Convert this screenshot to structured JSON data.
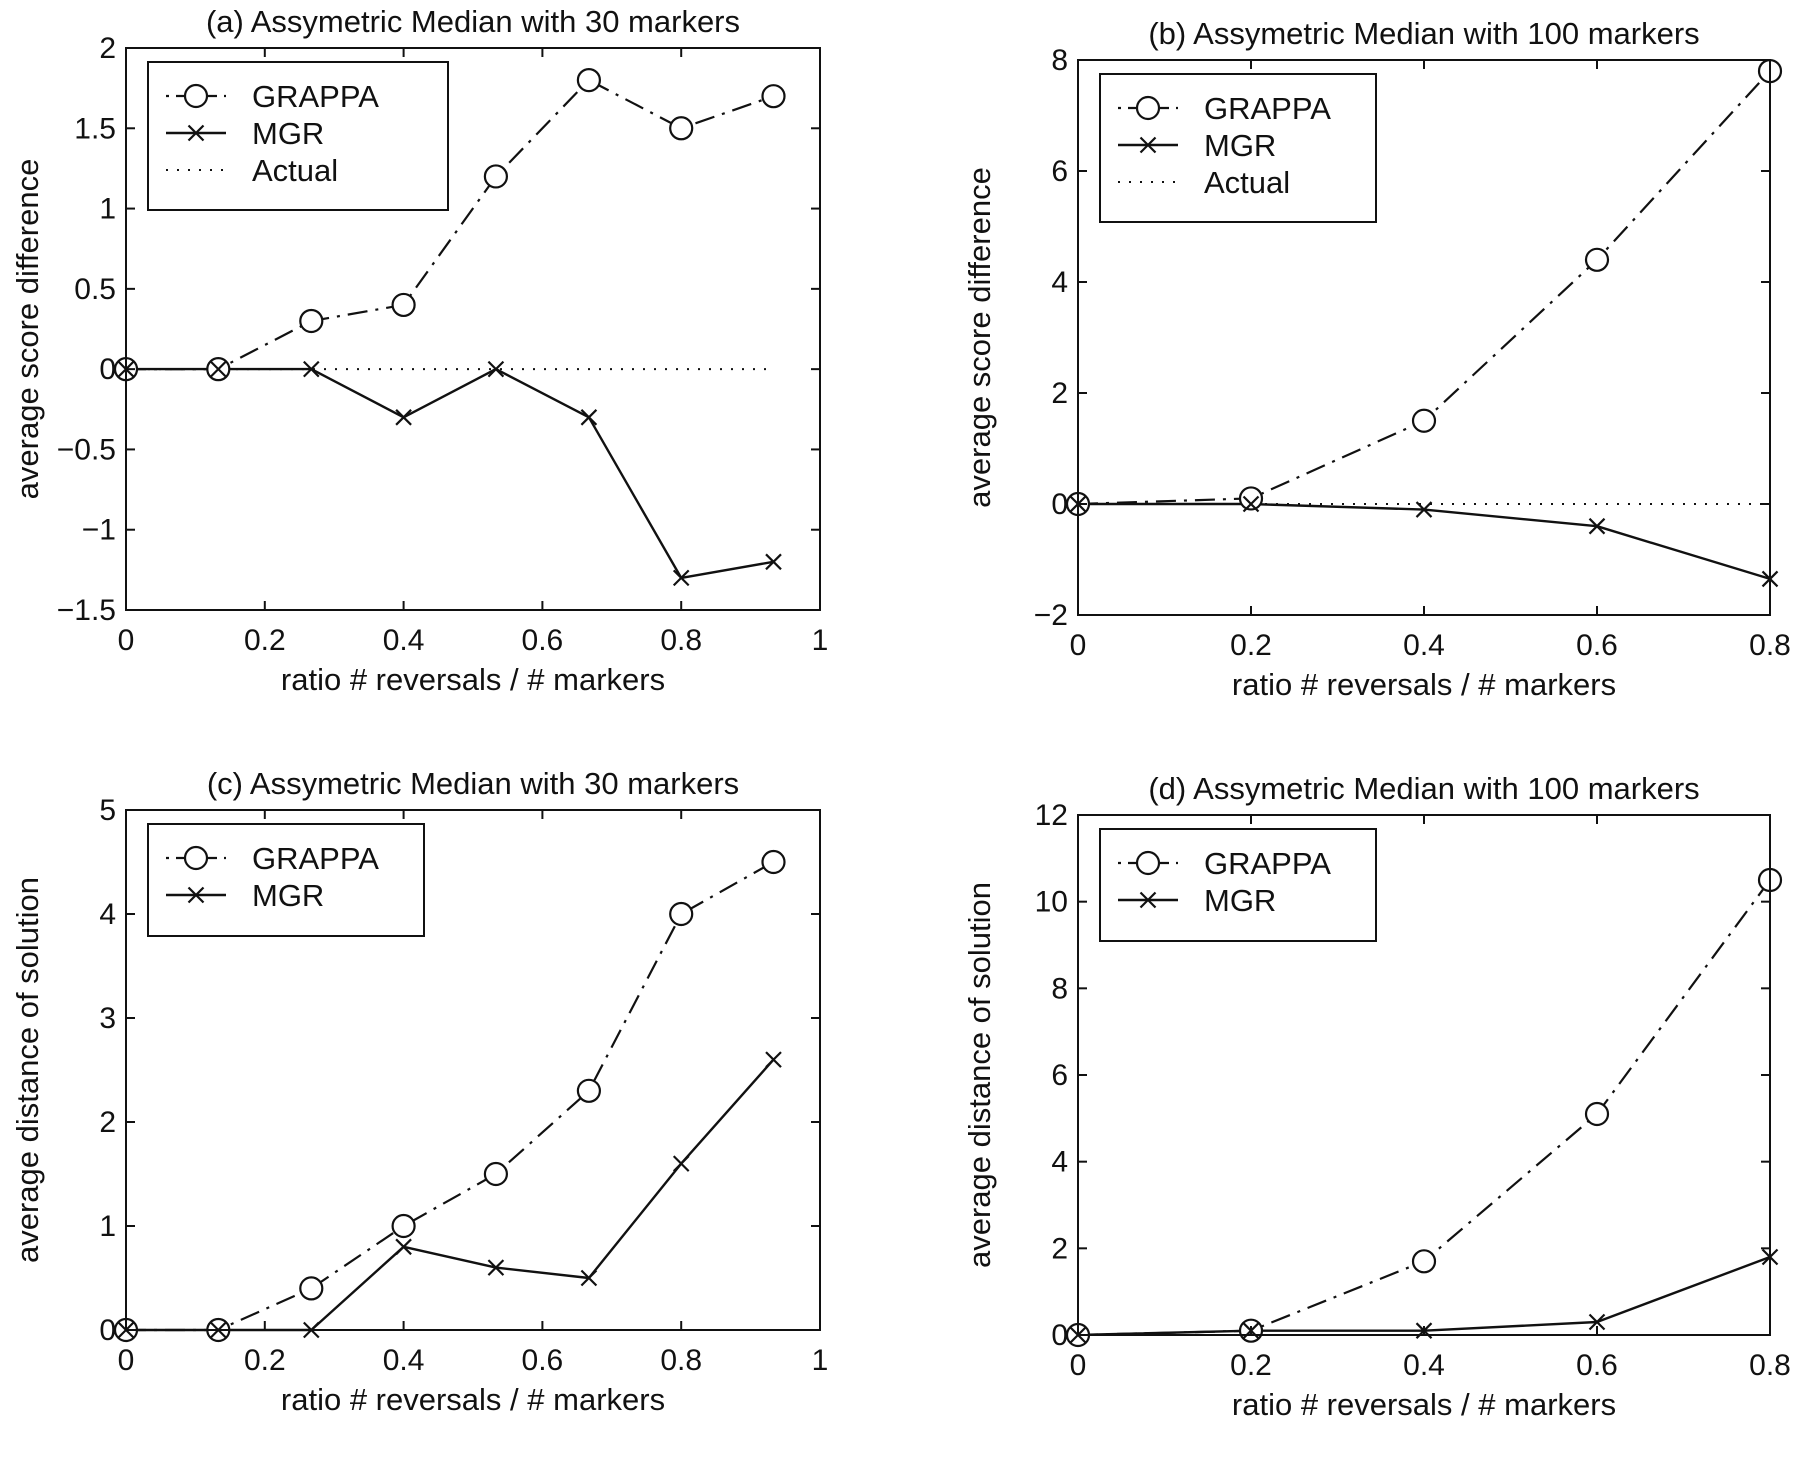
{
  "chart_data": [
    {
      "type": "line",
      "title": "(a)  Assymetric Median with 30 markers",
      "xlabel": "ratio # reversals / # markers",
      "ylabel": "average score difference",
      "xlim": [
        0,
        1
      ],
      "ylim": [
        -1.5,
        2
      ],
      "xticks": [
        0,
        0.2,
        0.4,
        0.6,
        0.8,
        1
      ],
      "xtick_labels": [
        "0",
        "0.2",
        "0.4",
        "0.6",
        "0.8",
        "1"
      ],
      "yticks": [
        -1.5,
        -1,
        -0.5,
        0,
        0.5,
        1,
        1.5,
        2
      ],
      "ytick_labels": [
        "−1.5",
        "−1",
        "−0.5",
        "0",
        "0.5",
        "1",
        "1.5",
        "2"
      ],
      "grid": false,
      "legend_position": "top-left",
      "series": [
        {
          "name": "GRAPPA",
          "style": "dashdot",
          "marker": "circle",
          "x": [
            0,
            0.133,
            0.267,
            0.4,
            0.533,
            0.667,
            0.8,
            0.933
          ],
          "y": [
            0,
            0,
            0.3,
            0.4,
            1.2,
            1.8,
            1.5,
            1.7
          ]
        },
        {
          "name": "MGR",
          "style": "solid",
          "marker": "x",
          "x": [
            0,
            0.133,
            0.267,
            0.4,
            0.533,
            0.667,
            0.8,
            0.933
          ],
          "y": [
            0,
            0,
            0,
            -0.3,
            0,
            -0.3,
            -1.3,
            -1.2
          ]
        },
        {
          "name": "Actual",
          "style": "dotted",
          "marker": "none",
          "x": [
            0,
            0.933
          ],
          "y": [
            0,
            0
          ]
        }
      ]
    },
    {
      "type": "line",
      "title": "(b)  Assymetric Median with 100 markers",
      "xlabel": "ratio # reversals / # markers",
      "ylabel": "average score difference",
      "xlim": [
        0,
        0.8
      ],
      "ylim": [
        -2,
        8
      ],
      "xticks": [
        0,
        0.2,
        0.4,
        0.6,
        0.8
      ],
      "xtick_labels": [
        "0",
        "0.2",
        "0.4",
        "0.6",
        "0.8"
      ],
      "yticks": [
        -2,
        0,
        2,
        4,
        6,
        8
      ],
      "ytick_labels": [
        "−2",
        "0",
        "2",
        "4",
        "6",
        "8"
      ],
      "grid": false,
      "legend_position": "top-left",
      "series": [
        {
          "name": "GRAPPA",
          "style": "dashdot",
          "marker": "circle",
          "x": [
            0,
            0.2,
            0.4,
            0.6,
            0.8
          ],
          "y": [
            0,
            0.1,
            1.5,
            4.4,
            7.8
          ]
        },
        {
          "name": "MGR",
          "style": "solid",
          "marker": "x",
          "x": [
            0,
            0.2,
            0.4,
            0.6,
            0.8
          ],
          "y": [
            0,
            0,
            -0.1,
            -0.4,
            -1.35
          ]
        },
        {
          "name": "Actual",
          "style": "dotted",
          "marker": "none",
          "x": [
            0,
            0.8
          ],
          "y": [
            0,
            0
          ]
        }
      ]
    },
    {
      "type": "line",
      "title": "(c)  Assymetric Median with 30 markers",
      "xlabel": "ratio # reversals / # markers",
      "ylabel": "average distance of solution",
      "xlim": [
        0,
        1
      ],
      "ylim": [
        0,
        5
      ],
      "xticks": [
        0,
        0.2,
        0.4,
        0.6,
        0.8,
        1
      ],
      "xtick_labels": [
        "0",
        "0.2",
        "0.4",
        "0.6",
        "0.8",
        "1"
      ],
      "yticks": [
        0,
        1,
        2,
        3,
        4,
        5
      ],
      "ytick_labels": [
        "0",
        "1",
        "2",
        "3",
        "4",
        "5"
      ],
      "grid": false,
      "legend_position": "top-left",
      "series": [
        {
          "name": "GRAPPA",
          "style": "dashdot",
          "marker": "circle",
          "x": [
            0,
            0.133,
            0.267,
            0.4,
            0.533,
            0.667,
            0.8,
            0.933
          ],
          "y": [
            0,
            0,
            0.4,
            1.0,
            1.5,
            2.3,
            4.0,
            4.5
          ]
        },
        {
          "name": "MGR",
          "style": "solid",
          "marker": "x",
          "x": [
            0,
            0.133,
            0.267,
            0.4,
            0.533,
            0.667,
            0.8,
            0.933
          ],
          "y": [
            0,
            0,
            0,
            0.8,
            0.6,
            0.5,
            1.6,
            2.6
          ]
        }
      ]
    },
    {
      "type": "line",
      "title": "(d)  Assymetric Median with 100 markers",
      "xlabel": "ratio # reversals / # markers",
      "ylabel": "average distance of solution",
      "xlim": [
        0,
        0.8
      ],
      "ylim": [
        0,
        12
      ],
      "xticks": [
        0,
        0.2,
        0.4,
        0.6,
        0.8
      ],
      "xtick_labels": [
        "0",
        "0.2",
        "0.4",
        "0.6",
        "0.8"
      ],
      "yticks": [
        0,
        2,
        4,
        6,
        8,
        10,
        12
      ],
      "ytick_labels": [
        "0",
        "2",
        "4",
        "6",
        "8",
        "10",
        "12"
      ],
      "grid": false,
      "legend_position": "top-left",
      "series": [
        {
          "name": "GRAPPA",
          "style": "dashdot",
          "marker": "circle",
          "x": [
            0,
            0.2,
            0.4,
            0.6,
            0.8
          ],
          "y": [
            0,
            0.1,
            1.7,
            5.1,
            10.5
          ]
        },
        {
          "name": "MGR",
          "style": "solid",
          "marker": "x",
          "x": [
            0,
            0.2,
            0.4,
            0.6,
            0.8
          ],
          "y": [
            0,
            0.1,
            0.1,
            0.3,
            1.8
          ]
        }
      ]
    }
  ]
}
